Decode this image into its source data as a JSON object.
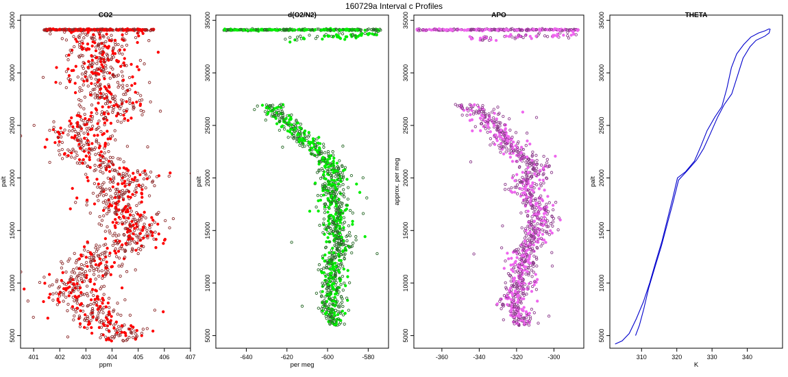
{
  "figure": {
    "title": "160729a   Interval c Profiles"
  },
  "chart_data": [
    {
      "type": "scatter",
      "title": "CO2",
      "xlabel": "ppm",
      "ylabel": "palt",
      "xlim": [
        400.5,
        407
      ],
      "ylim": [
        3800,
        35500
      ],
      "xticks": [
        401,
        402,
        403,
        404,
        405,
        406,
        407
      ],
      "yticks": [
        5000,
        10000,
        15000,
        20000,
        25000,
        30000,
        35000
      ],
      "color": "#ff0000",
      "edge_color": "#8b2a2a",
      "profile": [
        [
          34000,
          403.3,
          0.9
        ],
        [
          32500,
          403.6,
          0.7
        ],
        [
          31000,
          403.5,
          0.6
        ],
        [
          29500,
          403.4,
          0.6
        ],
        [
          28000,
          403.8,
          0.7
        ],
        [
          26500,
          404.2,
          0.7
        ],
        [
          25000,
          403.0,
          0.6
        ],
        [
          24000,
          402.6,
          0.7
        ],
        [
          22500,
          403.0,
          0.6
        ],
        [
          21500,
          403.2,
          0.5
        ],
        [
          20500,
          404.6,
          0.6
        ],
        [
          19000,
          404.4,
          0.6
        ],
        [
          17500,
          404.0,
          0.5
        ],
        [
          16000,
          404.8,
          0.6
        ],
        [
          15000,
          405.0,
          0.5
        ],
        [
          13500,
          404.5,
          0.6
        ],
        [
          12500,
          403.5,
          0.6
        ],
        [
          11000,
          402.9,
          0.6
        ],
        [
          9500,
          402.6,
          0.7
        ],
        [
          8000,
          402.9,
          0.6
        ],
        [
          6500,
          403.4,
          0.5
        ],
        [
          5500,
          404.3,
          0.5
        ],
        [
          4500,
          404.5,
          0.5
        ]
      ],
      "band": {
        "y": 34100,
        "xmin": 401.4,
        "xmax": 405.6
      }
    },
    {
      "type": "scatter",
      "title": "d(O2/N2)",
      "xlabel": "per meg",
      "ylabel": "palt",
      "xlim": [
        -655,
        -570
      ],
      "ylim": [
        3800,
        35500
      ],
      "xticks": [
        -640,
        -620,
        -600,
        -580
      ],
      "yticks": [
        5000,
        10000,
        15000,
        20000,
        25000,
        30000,
        35000
      ],
      "color": "#00ee00",
      "edge_color": "#2a6a2a",
      "profile": [
        [
          27000,
          -628,
          3
        ],
        [
          26000,
          -624,
          3
        ],
        [
          25000,
          -619,
          3
        ],
        [
          24000,
          -614,
          3
        ],
        [
          23000,
          -607,
          3
        ],
        [
          22000,
          -602,
          3
        ],
        [
          21000,
          -598,
          3
        ],
        [
          20000,
          -597,
          3
        ],
        [
          19000,
          -598,
          3
        ],
        [
          18000,
          -598,
          3
        ],
        [
          17000,
          -596,
          4
        ],
        [
          16000,
          -596,
          3
        ],
        [
          15000,
          -595,
          3
        ],
        [
          14000,
          -594,
          3
        ],
        [
          13000,
          -595,
          3
        ],
        [
          12000,
          -598,
          2
        ],
        [
          11000,
          -597,
          3
        ],
        [
          10000,
          -598,
          3
        ],
        [
          9000,
          -598,
          3
        ],
        [
          8000,
          -598,
          3
        ],
        [
          7000,
          -598,
          3
        ],
        [
          6000,
          -597,
          2
        ]
      ],
      "band": {
        "y": 34100,
        "xmin": -653,
        "xmax": -573
      },
      "secondary": {
        "y": 33200,
        "xmin": -621,
        "xmax": -575
      }
    },
    {
      "type": "scatter",
      "title": "APO",
      "xlabel": "",
      "ylabel": "approx. per meg",
      "xlim": [
        -375,
        -284
      ],
      "ylim": [
        3800,
        35500
      ],
      "xticks": [
        -360,
        -340,
        -320,
        -300
      ],
      "yticks": [
        5000,
        10000,
        15000,
        20000,
        25000,
        30000,
        35000
      ],
      "color": "#ee66ee",
      "edge_color": "#8a3a8a",
      "profile": [
        [
          27000,
          -345,
          5
        ],
        [
          26000,
          -338,
          5
        ],
        [
          25000,
          -333,
          4
        ],
        [
          24000,
          -328,
          4
        ],
        [
          23000,
          -322,
          4
        ],
        [
          22000,
          -316,
          4
        ],
        [
          21000,
          -310,
          4
        ],
        [
          20000,
          -313,
          4
        ],
        [
          19000,
          -316,
          4
        ],
        [
          18000,
          -312,
          4
        ],
        [
          17000,
          -308,
          4
        ],
        [
          16000,
          -307,
          4
        ],
        [
          15000,
          -309,
          4
        ],
        [
          14000,
          -312,
          4
        ],
        [
          13000,
          -316,
          4
        ],
        [
          12000,
          -316,
          4
        ],
        [
          11000,
          -317,
          4
        ],
        [
          10000,
          -318,
          4
        ],
        [
          9000,
          -320,
          4
        ],
        [
          8000,
          -323,
          4
        ],
        [
          7000,
          -319,
          3
        ],
        [
          6000,
          -316,
          3
        ]
      ],
      "band": {
        "y": 34100,
        "xmin": -374,
        "xmax": -287
      },
      "secondary": {
        "y": 33200,
        "xmin": -346,
        "xmax": -288
      }
    },
    {
      "type": "line",
      "title": "THETA",
      "xlabel": "K",
      "ylabel": "palt",
      "xlim": [
        301,
        350
      ],
      "ylim": [
        3800,
        35500
      ],
      "xticks": [
        310,
        320,
        330,
        340
      ],
      "yticks": [
        5000,
        10000,
        15000,
        20000,
        25000,
        30000,
        35000
      ],
      "color": "#0000cc",
      "series": [
        {
          "points": [
            [
              302.5,
              4200
            ],
            [
              304.5,
              4500
            ],
            [
              306.5,
              5200
            ],
            [
              308.5,
              6600
            ],
            [
              310.5,
              8200
            ],
            [
              312.3,
              10000
            ],
            [
              314,
              12000
            ],
            [
              315.8,
              14000
            ],
            [
              317.3,
              16000
            ],
            [
              318.8,
              18000
            ],
            [
              320.2,
              20000
            ],
            [
              322.5,
              20600
            ],
            [
              325,
              21600
            ],
            [
              326.8,
              23000
            ],
            [
              328.6,
              24500
            ],
            [
              330.8,
              25800
            ],
            [
              332.8,
              26800
            ],
            [
              334.2,
              28500
            ],
            [
              335.5,
              30500
            ],
            [
              337,
              31800
            ],
            [
              339,
              32700
            ],
            [
              341,
              33400
            ],
            [
              343.2,
              33800
            ],
            [
              345,
              34000
            ],
            [
              346.3,
              34200
            ]
          ]
        },
        {
          "points": [
            [
              346.5,
              34200
            ],
            [
              346.2,
              33800
            ],
            [
              345,
              33500
            ],
            [
              342.5,
              33100
            ],
            [
              340.8,
              32500
            ],
            [
              338.8,
              31400
            ],
            [
              337.2,
              29700
            ],
            [
              335.6,
              28000
            ],
            [
              333.5,
              27000
            ],
            [
              331.6,
              25800
            ],
            [
              329.5,
              24200
            ],
            [
              327.6,
              22800
            ],
            [
              325.6,
              21700
            ],
            [
              323,
              20700
            ],
            [
              320.5,
              19800
            ],
            [
              318.8,
              17500
            ],
            [
              317.2,
              15500
            ],
            [
              315.6,
              13500
            ],
            [
              313.8,
              11500
            ],
            [
              312,
              9500
            ],
            [
              310.6,
              7500
            ],
            [
              309.4,
              6000
            ],
            [
              308.3,
              5000
            ]
          ]
        }
      ]
    }
  ]
}
